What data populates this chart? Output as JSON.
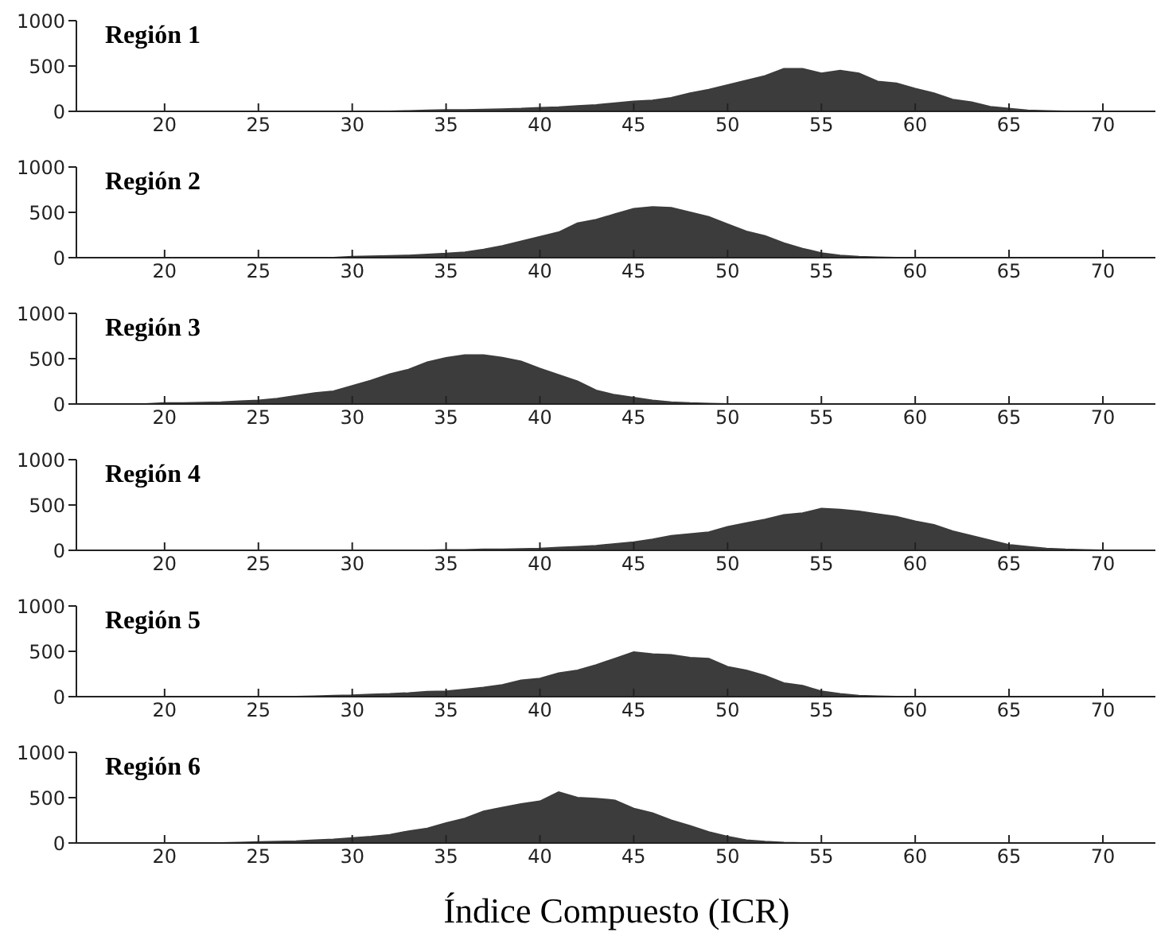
{
  "chart_data": [
    {
      "type": "area",
      "title": "Región 1",
      "x": [
        17,
        32,
        33,
        34,
        35,
        36,
        37,
        38,
        39,
        40,
        41,
        42,
        43,
        44,
        45,
        46,
        47,
        48,
        49,
        50,
        51,
        52,
        53,
        54,
        55,
        56,
        57,
        58,
        59,
        60,
        61,
        62,
        63,
        64,
        65,
        66,
        67,
        68,
        72
      ],
      "values": [
        0,
        0,
        5,
        10,
        15,
        15,
        20,
        25,
        30,
        40,
        45,
        60,
        70,
        90,
        110,
        120,
        150,
        200,
        240,
        290,
        340,
        390,
        470,
        470,
        420,
        450,
        420,
        330,
        310,
        250,
        200,
        130,
        100,
        50,
        30,
        10,
        5,
        0,
        0
      ],
      "color": "#3c3c3c",
      "xlim": [
        15.3,
        72.8
      ],
      "xticks": [
        20,
        25,
        30,
        35,
        40,
        45,
        50,
        55,
        60,
        65,
        70
      ],
      "ylim": [
        0,
        1000
      ],
      "yticks": [
        0,
        500,
        1000
      ],
      "grid": false
    },
    {
      "type": "area",
      "title": "Región 2",
      "x": [
        17,
        29,
        30,
        31,
        32,
        33,
        34,
        35,
        36,
        37,
        38,
        39,
        40,
        41,
        42,
        43,
        44,
        45,
        46,
        47,
        48,
        49,
        50,
        51,
        52,
        53,
        54,
        55,
        56,
        57,
        58,
        59,
        72
      ],
      "values": [
        0,
        0,
        10,
        15,
        20,
        25,
        35,
        45,
        60,
        90,
        130,
        180,
        230,
        280,
        380,
        420,
        480,
        540,
        560,
        550,
        500,
        450,
        370,
        290,
        240,
        160,
        100,
        50,
        25,
        10,
        5,
        0,
        0
      ],
      "color": "#3c3c3c",
      "xlim": [
        15.3,
        72.8
      ],
      "xticks": [
        20,
        25,
        30,
        35,
        40,
        45,
        50,
        55,
        60,
        65,
        70
      ],
      "ylim": [
        0,
        1000
      ],
      "yticks": [
        0,
        500,
        1000
      ],
      "grid": false
    },
    {
      "type": "area",
      "title": "Región 3",
      "x": [
        17,
        19,
        20,
        21,
        22,
        23,
        24,
        25,
        26,
        27,
        28,
        29,
        30,
        31,
        32,
        33,
        34,
        35,
        36,
        37,
        38,
        39,
        40,
        41,
        42,
        43,
        44,
        45,
        46,
        47,
        48,
        49,
        50,
        72
      ],
      "values": [
        0,
        0,
        10,
        10,
        15,
        20,
        30,
        40,
        60,
        90,
        120,
        140,
        200,
        260,
        330,
        380,
        460,
        510,
        540,
        540,
        510,
        470,
        390,
        320,
        250,
        150,
        100,
        70,
        40,
        20,
        10,
        5,
        0,
        0
      ],
      "color": "#3c3c3c",
      "xlim": [
        15.3,
        72.8
      ],
      "xticks": [
        20,
        25,
        30,
        35,
        40,
        45,
        50,
        55,
        60,
        65,
        70
      ],
      "ylim": [
        0,
        1000
      ],
      "yticks": [
        0,
        500,
        1000
      ],
      "grid": false
    },
    {
      "type": "area",
      "title": "Región 4",
      "x": [
        17,
        34,
        35,
        36,
        37,
        38,
        39,
        40,
        41,
        42,
        43,
        44,
        45,
        46,
        47,
        48,
        49,
        50,
        51,
        52,
        53,
        54,
        55,
        56,
        57,
        58,
        59,
        60,
        61,
        62,
        63,
        64,
        65,
        66,
        67,
        68,
        69,
        70,
        72
      ],
      "values": [
        0,
        0,
        5,
        5,
        10,
        10,
        15,
        20,
        30,
        40,
        50,
        70,
        90,
        120,
        160,
        180,
        200,
        260,
        300,
        340,
        390,
        410,
        460,
        450,
        430,
        400,
        370,
        320,
        280,
        210,
        160,
        110,
        60,
        40,
        20,
        10,
        5,
        0,
        0
      ],
      "color": "#3c3c3c",
      "xlim": [
        15.3,
        72.8
      ],
      "xticks": [
        20,
        25,
        30,
        35,
        40,
        45,
        50,
        55,
        60,
        65,
        70
      ],
      "ylim": [
        0,
        1000
      ],
      "yticks": [
        0,
        500,
        1000
      ],
      "grid": false
    },
    {
      "type": "area",
      "title": "Región 5",
      "x": [
        17,
        27,
        28,
        29,
        30,
        31,
        32,
        33,
        34,
        35,
        36,
        37,
        38,
        39,
        40,
        41,
        42,
        43,
        44,
        45,
        46,
        47,
        48,
        49,
        50,
        51,
        52,
        53,
        54,
        55,
        56,
        57,
        58,
        59,
        72
      ],
      "values": [
        0,
        0,
        5,
        10,
        15,
        25,
        30,
        40,
        55,
        60,
        80,
        100,
        130,
        180,
        200,
        260,
        290,
        350,
        420,
        490,
        470,
        460,
        430,
        420,
        330,
        290,
        230,
        150,
        120,
        60,
        30,
        10,
        5,
        0,
        0
      ],
      "color": "#3c3c3c",
      "xlim": [
        15.3,
        72.8
      ],
      "xticks": [
        20,
        25,
        30,
        35,
        40,
        45,
        50,
        55,
        60,
        65,
        70
      ],
      "ylim": [
        0,
        1000
      ],
      "yticks": [
        0,
        500,
        1000
      ],
      "grid": false
    },
    {
      "type": "area",
      "title": "Región 6",
      "xlabel": "Índice Compuesto (ICR)",
      "x": [
        17,
        23,
        24,
        25,
        26,
        27,
        28,
        29,
        30,
        31,
        32,
        33,
        34,
        35,
        36,
        37,
        38,
        39,
        40,
        41,
        42,
        43,
        44,
        45,
        46,
        47,
        48,
        49,
        50,
        51,
        52,
        53,
        54,
        72
      ],
      "values": [
        0,
        0,
        5,
        10,
        15,
        20,
        30,
        40,
        55,
        70,
        90,
        130,
        160,
        220,
        270,
        350,
        390,
        430,
        460,
        560,
        500,
        490,
        470,
        380,
        330,
        250,
        190,
        120,
        70,
        30,
        15,
        5,
        0,
        0
      ],
      "color": "#3c3c3c",
      "xlim": [
        15.3,
        72.8
      ],
      "xticks": [
        20,
        25,
        30,
        35,
        40,
        45,
        50,
        55,
        60,
        65,
        70
      ],
      "ylim": [
        0,
        1000
      ],
      "yticks": [
        0,
        500,
        1000
      ],
      "grid": false
    }
  ]
}
